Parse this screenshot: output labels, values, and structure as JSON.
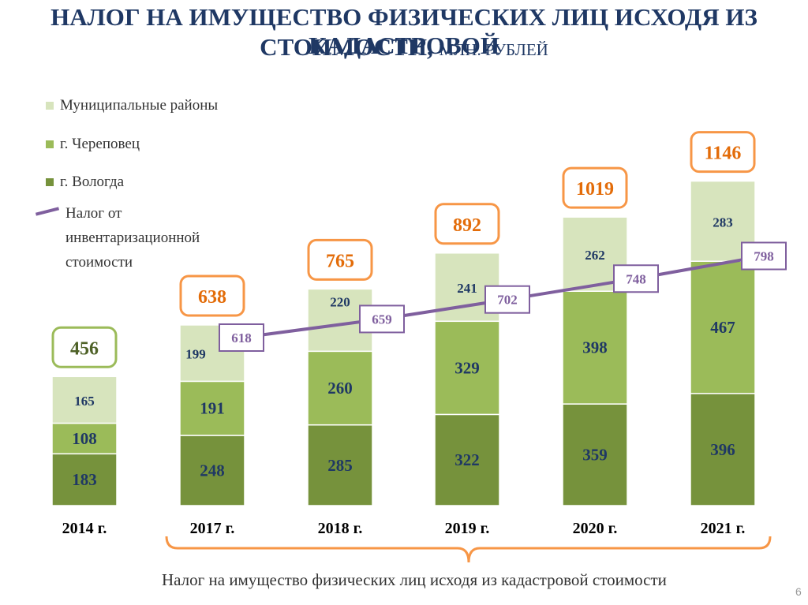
{
  "title": {
    "line1": "НАЛОГ НА ИМУЩЕСТВО ФИЗИЧЕСКИХ ЛИЦ ИСХОДЯ ИЗ КАДАСТРОВОЙ",
    "line2_main": "СТОИМОСТИ,",
    "line2_sub": "МЛН. РУБЛЕЙ"
  },
  "legend": {
    "municipal": "Муниципальные районы",
    "cherepovets": "г. Череповец",
    "vologda": "г. Вологда",
    "inventory": "Налог от инвентаризационной стоимости"
  },
  "footer_caption": "Налог на имущество физических лиц исходя из кадастровой стоимости",
  "page_number": "6",
  "colors": {
    "vologda": "#76923c",
    "cherepovets": "#9bbb59",
    "municipal": "#d7e4bd",
    "line": "#7f5f9e",
    "total_box_border": "#f79646",
    "total_box_2014": "#9bbb59",
    "total_text": "#e36c09",
    "total_text_2014": "#4f6228",
    "value_text": "#1f3864"
  },
  "chart_data": {
    "type": "bar",
    "stacked": true,
    "categories": [
      "2014 г.",
      "2017 г.",
      "2018 г.",
      "2019 г.",
      "2020 г.",
      "2021 г."
    ],
    "series": [
      {
        "name": "г. Вологда",
        "values": [
          183,
          248,
          285,
          322,
          359,
          396
        ]
      },
      {
        "name": "г. Череповец",
        "values": [
          108,
          191,
          260,
          329,
          398,
          467
        ]
      },
      {
        "name": "Муниципальные районы",
        "values": [
          165,
          199,
          220,
          241,
          262,
          283
        ]
      }
    ],
    "totals": [
      456,
      638,
      765,
      892,
      1019,
      1146
    ],
    "line_series": {
      "name": "Налог от инвентаризационной стоимости",
      "categories": [
        "2017 г.",
        "2018 г.",
        "2019 г.",
        "2020 г.",
        "2021 г."
      ],
      "values": [
        618,
        659,
        702,
        748,
        798
      ]
    }
  }
}
